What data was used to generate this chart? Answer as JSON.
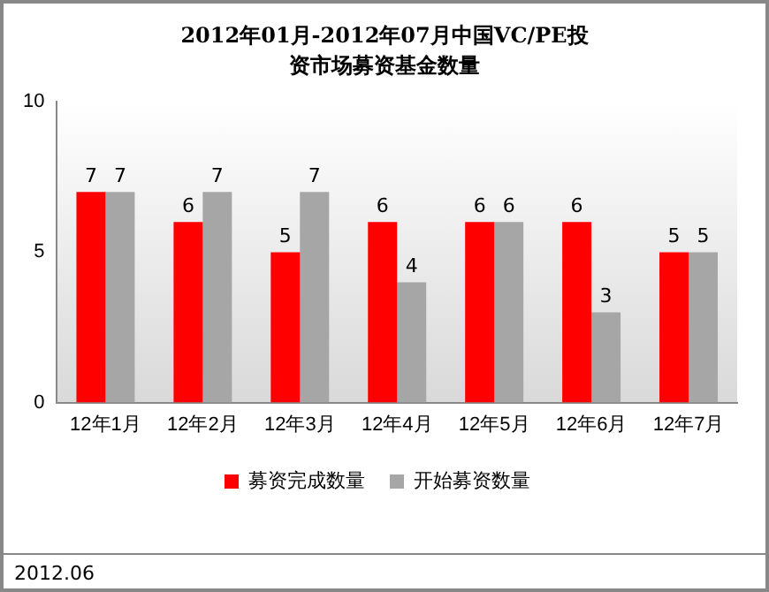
{
  "chart_data": {
    "type": "bar",
    "title": "2012年01月-2012年07月中国VC/PE投资市场募资基金数量",
    "categories": [
      "12年1月",
      "12年2月",
      "12年3月",
      "12年4月",
      "12年5月",
      "12年6月",
      "12年7月"
    ],
    "series": [
      {
        "name": "募资完成数量",
        "color": "#ff0000",
        "values": [
          7,
          6,
          5,
          6,
          6,
          6,
          5
        ]
      },
      {
        "name": "开始募资数量",
        "color": "#a6a6a6",
        "values": [
          7,
          7,
          7,
          4,
          6,
          3,
          5
        ]
      }
    ],
    "ylim": [
      0,
      10
    ],
    "yticks": [
      0,
      5,
      10
    ],
    "grid": false,
    "legend": "bottom",
    "data_labels": true,
    "annotations": [
      "2012.06"
    ]
  }
}
